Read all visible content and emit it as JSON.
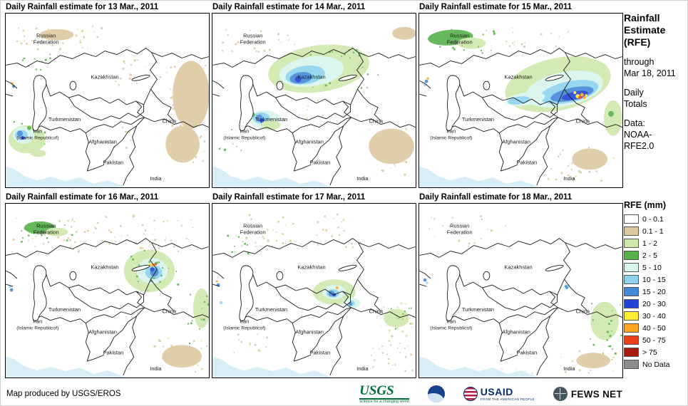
{
  "panels": [
    {
      "title": "Daily Rainfall estimate for 13 Mar., 2011"
    },
    {
      "title": "Daily Rainfall estimate for 14 Mar., 2011"
    },
    {
      "title": "Daily Rainfall estimate for 15 Mar., 2011"
    },
    {
      "title": "Daily Rainfall estimate for 16 Mar., 2011"
    },
    {
      "title": "Daily Rainfall estimate for 17 Mar., 2011"
    },
    {
      "title": "Daily Rainfall estimate for 18 Mar., 2011"
    }
  ],
  "map": {
    "labels": [
      {
        "lines": [
          "Russian",
          "Federation"
        ]
      },
      {
        "lines": [
          "Kazakhstan"
        ]
      },
      {
        "lines": [
          "Turkmenistan"
        ]
      },
      {
        "lines": [
          "Iran",
          "(Islamic Republicof)"
        ]
      },
      {
        "lines": [
          "Afghanistan"
        ]
      },
      {
        "lines": [
          "Pakistan"
        ]
      },
      {
        "lines": [
          "India"
        ]
      },
      {
        "lines": [
          "China"
        ]
      }
    ]
  },
  "sidebar": {
    "lines": [
      {
        "text": "Rainfall",
        "style": "title"
      },
      {
        "text": "Estimate",
        "style": "title"
      },
      {
        "text": "(RFE)",
        "style": "title"
      },
      {
        "text": "",
        "style": "gap"
      },
      {
        "text": "through",
        "style": "plain"
      },
      {
        "text": "Mar 18, 2011",
        "style": "plain"
      },
      {
        "text": "",
        "style": "gap"
      },
      {
        "text": "Daily",
        "style": "plain"
      },
      {
        "text": "Totals",
        "style": "plain"
      },
      {
        "text": "",
        "style": "gap"
      },
      {
        "text": "Data:",
        "style": "plain"
      },
      {
        "text": "NOAA-",
        "style": "plain"
      },
      {
        "text": "RFE2.0",
        "style": "plain"
      }
    ]
  },
  "legend": {
    "title": "RFE (mm)",
    "entries": [
      {
        "label": "0 - 0.1",
        "color": "#ffffff"
      },
      {
        "label": "0.1 - 1",
        "color": "#ddc8a0"
      },
      {
        "label": "1 - 2",
        "color": "#cfe8ad"
      },
      {
        "label": "2 - 5",
        "color": "#58b24c"
      },
      {
        "label": "5 - 10",
        "color": "#daf4ee"
      },
      {
        "label": "10 - 15",
        "color": "#8fd2ee"
      },
      {
        "label": "15 - 20",
        "color": "#4489d8"
      },
      {
        "label": "20 - 30",
        "color": "#2342d6"
      },
      {
        "label": "30 - 40",
        "color": "#ffee30"
      },
      {
        "label": "40 - 50",
        "color": "#ffa51f"
      },
      {
        "label": "50 - 75",
        "color": "#ee3f1b"
      },
      {
        "label": "> 75",
        "color": "#a81c0f"
      },
      {
        "label": "No Data",
        "color": "#8c8c8c"
      }
    ]
  },
  "footer": {
    "credit": "Map produced by USGS/EROS"
  },
  "logos": {
    "usgs": {
      "name": "USGS",
      "tagline": "science for a changing world"
    },
    "noaa": {
      "name": "NOAA"
    },
    "usaid": {
      "name": "USAID",
      "tagline": "FROM THE AMERICAN PEOPLE"
    },
    "fewsnet": {
      "name": "FEWS NET"
    }
  }
}
